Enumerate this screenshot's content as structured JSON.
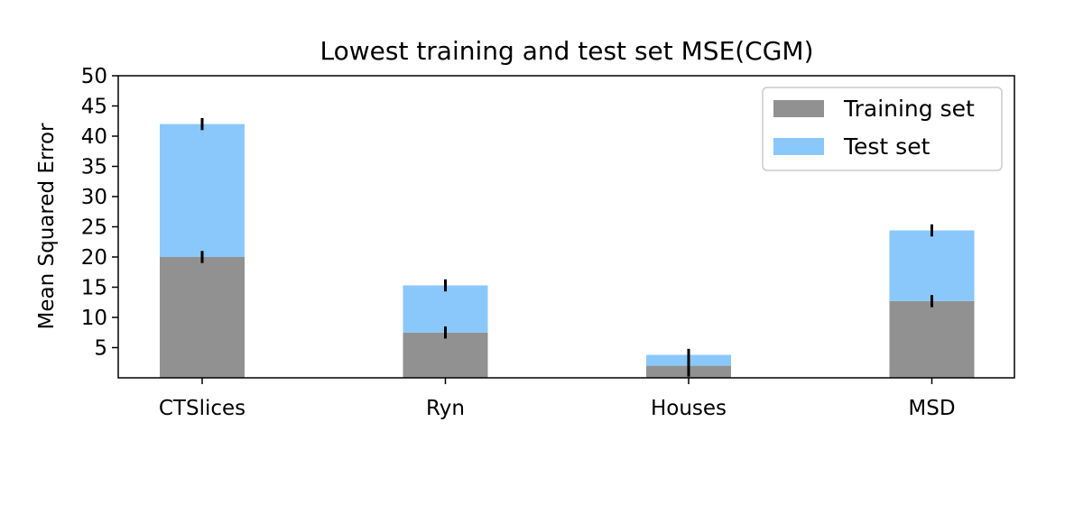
{
  "chart_data": {
    "type": "bar",
    "stacked": true,
    "title": "Lowest training and test set MSE(CGM)",
    "xlabel": "",
    "ylabel": "Mean Squared Error",
    "categories": [
      "CTSlices",
      "Ryn",
      "Houses",
      "MSD"
    ],
    "ylim": [
      0,
      50
    ],
    "yticks": [
      5,
      10,
      15,
      20,
      25,
      30,
      35,
      40,
      45,
      50
    ],
    "grid": false,
    "legend_position": "top-right",
    "series": [
      {
        "name": "Training set",
        "color": "#919191",
        "values": [
          20.0,
          7.5,
          2.0,
          12.7
        ],
        "errors": [
          1.0,
          1.0,
          1.8,
          1.0
        ]
      },
      {
        "name": "Test set",
        "color": "#8ac8fb",
        "values": [
          22.0,
          7.8,
          1.8,
          11.7
        ],
        "errors": [
          1.0,
          1.0,
          1.0,
          1.0
        ]
      }
    ],
    "error_bar_color": "#000000"
  }
}
